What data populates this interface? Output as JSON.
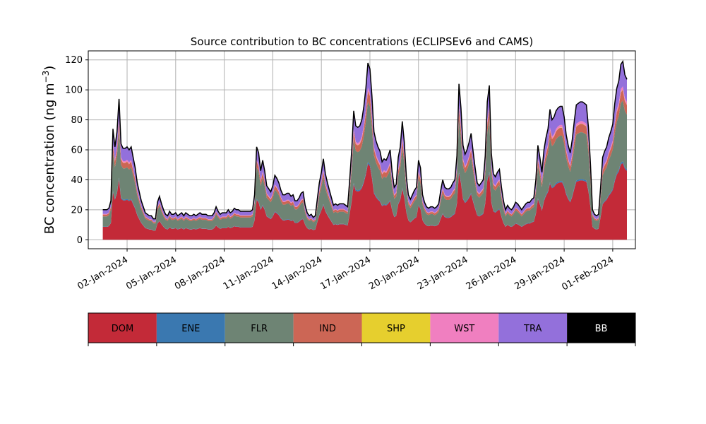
{
  "chart_data": {
    "type": "area",
    "title": "Source contribution to BC concentrations (ECLIPSEv6 and CAMS)",
    "ylabel_main": "BC concentration (ng m",
    "ylabel_sup": "−3",
    "ylabel_close": ")",
    "xlabel": "",
    "ylim": [
      -6,
      126
    ],
    "yticks": [
      0,
      20,
      40,
      60,
      80,
      100,
      120
    ],
    "ytick_labels": [
      "0",
      "20",
      "40",
      "60",
      "80",
      "100",
      "120"
    ],
    "xlim_days": [
      -2.4,
      31.4
    ],
    "xticks_days": [
      0,
      3,
      6,
      9,
      12,
      15,
      18,
      21,
      24,
      27,
      30
    ],
    "xtick_labels": [
      "02-Jan-2024",
      "05-Jan-2024",
      "08-Jan-2024",
      "11-Jan-2024",
      "14-Jan-2024",
      "17-Jan-2024",
      "20-Jan-2024",
      "23-Jan-2024",
      "26-Jan-2024",
      "29-Jan-2024",
      "01-Feb-2024"
    ],
    "grid": true,
    "x_start": "31-Dec-2023 12:00",
    "x_step_hours": 3,
    "total": [
      20,
      20,
      20,
      21,
      26,
      74,
      62,
      72,
      94,
      64,
      61,
      61,
      62,
      60,
      62,
      55,
      48,
      38,
      32,
      26,
      22,
      18,
      17,
      16,
      16,
      14,
      14,
      25,
      29,
      24,
      20,
      17,
      16,
      19,
      17,
      17,
      18,
      16,
      17,
      18,
      16,
      18,
      17,
      16,
      16,
      17,
      16,
      17,
      18,
      17,
      17,
      17,
      16,
      16,
      16,
      18,
      22,
      19,
      17,
      18,
      18,
      18,
      20,
      18,
      19,
      21,
      20,
      20,
      19,
      19,
      19,
      19,
      19,
      19,
      20,
      30,
      62,
      58,
      46,
      53,
      46,
      36,
      34,
      32,
      36,
      43,
      41,
      38,
      33,
      30,
      30,
      31,
      31,
      29,
      30,
      26,
      26,
      28,
      31,
      32,
      23,
      18,
      16,
      17,
      15,
      16,
      27,
      38,
      45,
      54,
      44,
      38,
      33,
      28,
      23,
      24,
      23,
      24,
      24,
      24,
      23,
      22,
      40,
      60,
      86,
      76,
      75,
      76,
      80,
      89,
      101,
      118,
      114,
      96,
      72,
      66,
      62,
      59,
      52,
      54,
      53,
      56,
      60,
      45,
      35,
      37,
      55,
      62,
      79,
      65,
      42,
      30,
      27,
      30,
      33,
      35,
      53,
      48,
      30,
      25,
      22,
      21,
      22,
      22,
      21,
      22,
      24,
      33,
      40,
      35,
      34,
      34,
      35,
      38,
      40,
      56,
      104,
      88,
      63,
      57,
      60,
      65,
      71,
      59,
      48,
      38,
      36,
      38,
      40,
      56,
      92,
      103,
      58,
      44,
      42,
      45,
      47,
      35,
      26,
      20,
      23,
      21,
      20,
      22,
      25,
      24,
      22,
      20,
      22,
      24,
      25,
      25,
      27,
      28,
      40,
      63,
      55,
      45,
      60,
      68,
      74,
      87,
      80,
      82,
      86,
      88,
      89,
      89,
      82,
      70,
      63,
      58,
      67,
      79,
      90,
      91,
      92,
      92,
      91,
      90,
      75,
      50,
      20,
      17,
      16,
      17,
      35,
      55,
      59,
      62,
      68,
      72,
      77,
      91,
      101,
      106,
      117,
      119,
      110,
      107
    ],
    "series": [
      {
        "name": "DOM",
        "color": "#c32a38",
        "text_color": "#000000",
        "fraction": 0.43
      },
      {
        "name": "ENE",
        "color": "#3a78b0",
        "text_color": "#000000",
        "fraction": 0.01
      },
      {
        "name": "FLR",
        "color": "#6e8474",
        "text_color": "#000000",
        "fraction": 0.34
      },
      {
        "name": "IND",
        "color": "#cc6655",
        "text_color": "#000000",
        "fraction": 0.06
      },
      {
        "name": "SHP",
        "color": "#e6cf2e",
        "text_color": "#000000",
        "fraction": 0.002
      },
      {
        "name": "WST",
        "color": "#f07fc0",
        "text_color": "#000000",
        "fraction": 0.018
      },
      {
        "name": "TRA",
        "color": "#9370db",
        "text_color": "#000000",
        "fraction": 0.14
      },
      {
        "name": "BB",
        "color": "#000000",
        "text_color": "#ffffff",
        "fraction": 0.0
      }
    ]
  }
}
